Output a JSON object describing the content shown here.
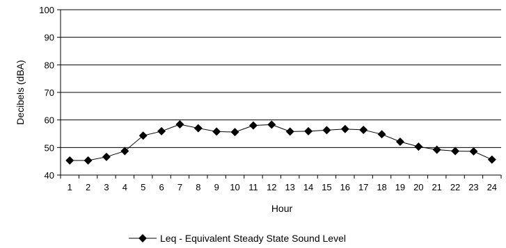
{
  "chart_data": {
    "type": "line",
    "title": "",
    "xlabel": "Hour",
    "ylabel": "Decibels (dBA)",
    "ylim": [
      40,
      100
    ],
    "yticks": [
      40,
      50,
      60,
      70,
      80,
      90,
      100
    ],
    "grid": "horizontal",
    "legend_position": "bottom",
    "categories": [
      "1",
      "2",
      "3",
      "4",
      "5",
      "6",
      "7",
      "8",
      "9",
      "10",
      "11",
      "12",
      "13",
      "14",
      "15",
      "16",
      "17",
      "18",
      "19",
      "20",
      "21",
      "22",
      "23",
      "24"
    ],
    "series": [
      {
        "name": "Leq - Equivalent Steady State Sound Level",
        "marker": "diamond",
        "color": "#000000",
        "values": [
          45.3,
          45.3,
          46.6,
          48.7,
          54.3,
          55.9,
          58.4,
          57.0,
          55.8,
          55.6,
          58.0,
          58.3,
          55.8,
          55.9,
          56.3,
          56.7,
          56.4,
          54.8,
          52.1,
          50.3,
          49.2,
          48.7,
          48.6,
          45.6
        ]
      }
    ]
  }
}
